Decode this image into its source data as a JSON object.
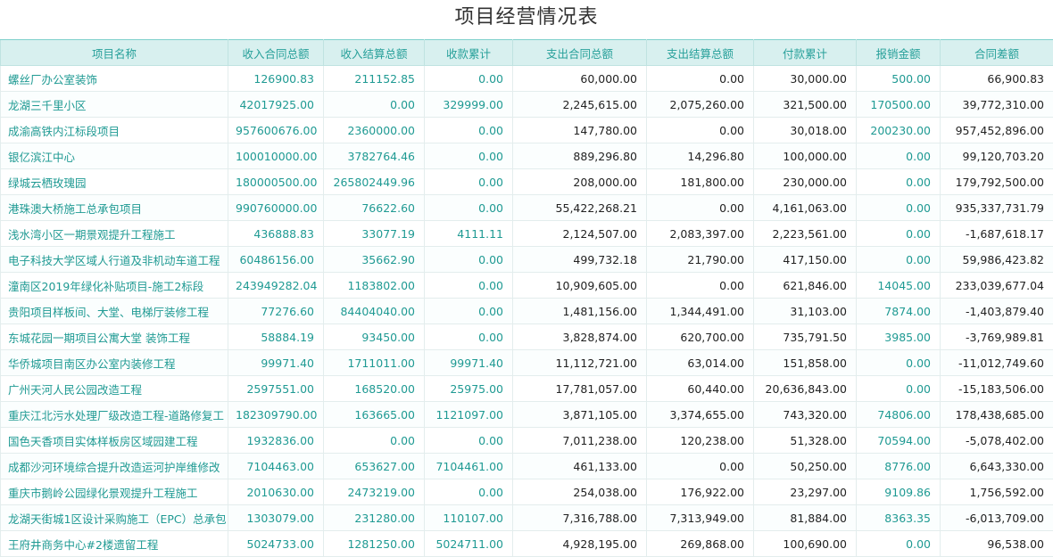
{
  "title": "项目经营情况表",
  "columns": [
    "项目名称",
    "收入合同总额",
    "收入结算总额",
    "收款累计",
    "支出合同总额",
    "支出结算总额",
    "付款累计",
    "报销金额",
    "合同差额"
  ],
  "rows": [
    [
      "螺丝厂办公室装饰",
      "126900.83",
      "211152.85",
      "0.00",
      "60,000.00",
      "0.00",
      "30,000.00",
      "500.00",
      "66,900.83"
    ],
    [
      "龙湖三千里小区",
      "42017925.00",
      "0.00",
      "329999.00",
      "2,245,615.00",
      "2,075,260.00",
      "321,500.00",
      "170500.00",
      "39,772,310.00"
    ],
    [
      "成渝高铁内江标段项目",
      "957600676.00",
      "2360000.00",
      "0.00",
      "147,780.00",
      "0.00",
      "30,018.00",
      "200230.00",
      "957,452,896.00"
    ],
    [
      "银亿滨江中心",
      "100010000.00",
      "3782764.46",
      "0.00",
      "889,296.80",
      "14,296.80",
      "100,000.00",
      "0.00",
      "99,120,703.20"
    ],
    [
      "绿城云栖玫瑰园",
      "180000500.00",
      "265802449.96",
      "0.00",
      "208,000.00",
      "181,800.00",
      "230,000.00",
      "0.00",
      "179,792,500.00"
    ],
    [
      "港珠澳大桥施工总承包项目",
      "990760000.00",
      "76622.60",
      "0.00",
      "55,422,268.21",
      "0.00",
      "4,161,063.00",
      "0.00",
      "935,337,731.79"
    ],
    [
      "浅水湾小区一期景观提升工程施工",
      "436888.83",
      "33077.19",
      "4111.11",
      "2,124,507.00",
      "2,083,397.00",
      "2,223,561.00",
      "0.00",
      "-1,687,618.17"
    ],
    [
      "电子科技大学区域人行道及非机动车道工程",
      "60486156.00",
      "35662.90",
      "0.00",
      "499,732.18",
      "21,790.00",
      "417,150.00",
      "0.00",
      "59,986,423.82"
    ],
    [
      "潼南区2019年绿化补贴项目-施工2标段",
      "243949282.04",
      "1183802.00",
      "0.00",
      "10,909,605.00",
      "0.00",
      "621,846.00",
      "14045.00",
      "233,039,677.04"
    ],
    [
      "贵阳项目样板间、大堂、电梯厅装修工程",
      "77276.60",
      "84404040.00",
      "0.00",
      "1,481,156.00",
      "1,344,491.00",
      "31,103.00",
      "7874.00",
      "-1,403,879.40"
    ],
    [
      "东城花园一期项目公寓大堂 装饰工程",
      "58884.19",
      "93450.00",
      "0.00",
      "3,828,874.00",
      "620,700.00",
      "735,791.50",
      "3985.00",
      "-3,769,989.81"
    ],
    [
      "华侨城项目南区办公室内装修工程",
      "99971.40",
      "1711011.00",
      "99971.40",
      "11,112,721.00",
      "63,014.00",
      "151,858.00",
      "0.00",
      "-11,012,749.60"
    ],
    [
      "广州天河人民公园改造工程",
      "2597551.00",
      "168520.00",
      "25975.00",
      "17,781,057.00",
      "60,440.00",
      "20,636,843.00",
      "0.00",
      "-15,183,506.00"
    ],
    [
      "重庆江北污水处理厂级改造工程-道路修复工",
      "182309790.00",
      "163665.00",
      "1121097.00",
      "3,871,105.00",
      "3,374,655.00",
      "743,320.00",
      "74806.00",
      "178,438,685.00"
    ],
    [
      "国色天香项目实体样板房区域园建工程",
      "1932836.00",
      "0.00",
      "0.00",
      "7,011,238.00",
      "120,238.00",
      "51,328.00",
      "70594.00",
      "-5,078,402.00"
    ],
    [
      "成都沙河环境综合提升改造运河护岸维修改",
      "7104463.00",
      "653627.00",
      "7104461.00",
      "461,133.00",
      "0.00",
      "50,250.00",
      "8776.00",
      "6,643,330.00"
    ],
    [
      "重庆市鹅岭公园绿化景观提升工程施工",
      "2010630.00",
      "2473219.00",
      "0.00",
      "254,038.00",
      "176,922.00",
      "23,297.00",
      "9109.86",
      "1,756,592.00"
    ],
    [
      "龙湖天街城1区设计采购施工（EPC）总承包",
      "1303079.00",
      "231280.00",
      "110107.00",
      "7,316,788.00",
      "7,313,949.00",
      "81,884.00",
      "8363.35",
      "-6,013,709.00"
    ],
    [
      "王府井商务中心#2楼遗留工程",
      "5024733.00",
      "1281250.00",
      "5024711.00",
      "4,928,195.00",
      "269,868.00",
      "100,690.00",
      "0.00",
      "96,538.00"
    ]
  ],
  "colors": {
    "accent": "#1f9a93",
    "header_bg": "#d8f0ef"
  }
}
